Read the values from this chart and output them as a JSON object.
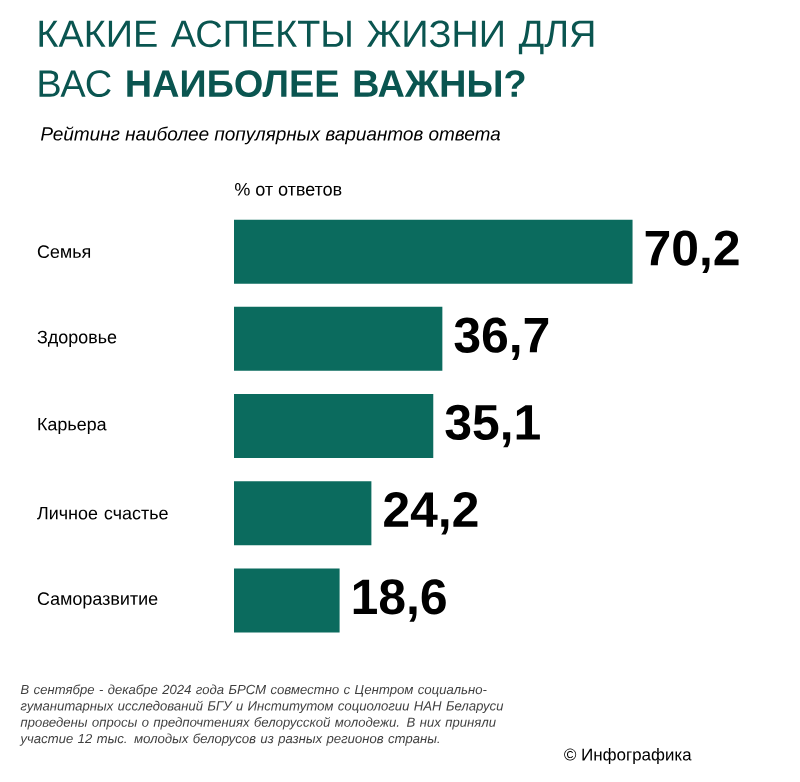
{
  "chart_data": {
    "type": "bar",
    "orientation": "horizontal",
    "title": "КАКИЕ АСПЕКТЫ ЖИЗНИ ДЛЯ ВАС **НАИБОЛЕЕ ВАЖНЫ?**",
    "subtitle": "Рейтинг наиболее популярных вариантов ответа",
    "xlabel": "% от ответов",
    "categories": [
      "Семья",
      "Здоровье",
      "Карьера",
      "Личное счастье",
      "Саморазвитие"
    ],
    "values": [
      70.2,
      36.7,
      35.1,
      24.2,
      18.6
    ],
    "value_labels": [
      "70,2",
      "36,7",
      "35,1",
      "24,2",
      "18,6"
    ],
    "color": "#0b6b5e",
    "annotations": [
      "В сентябре - декабре 2024 года БРСМ совместно с Центром социально-гуманитарных исследований БГУ и Институтом социологии НАН Беларуси проведены опросы о предпочтениях белорусской молодежи. В них приняли участие 12 тыс. молодых белорусов из разных регионов страны.",
      "© Инфографика"
    ]
  }
}
